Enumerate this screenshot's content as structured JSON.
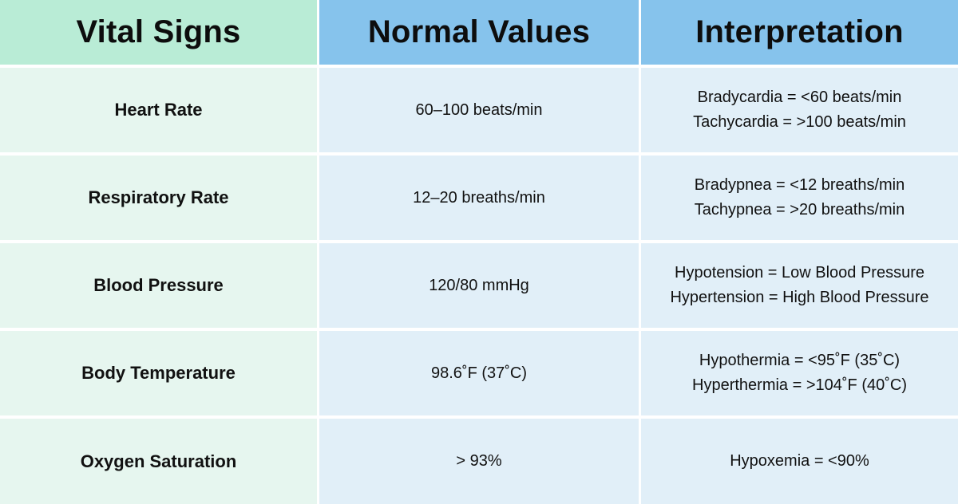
{
  "headers": {
    "col1": "Vital Signs",
    "col2": "Normal Values",
    "col3": "Interpretation"
  },
  "rows": [
    {
      "sign": "Heart Rate",
      "normal": "60–100 beats/min",
      "interp_line1": "Bradycardia = <60 beats/min",
      "interp_line2": "Tachycardia = >100 beats/min"
    },
    {
      "sign": "Respiratory Rate",
      "normal": "12–20 breaths/min",
      "interp_line1": "Bradypnea = <12 breaths/min",
      "interp_line2": "Tachypnea = >20 breaths/min"
    },
    {
      "sign": "Blood Pressure",
      "normal": "120/80 mmHg",
      "interp_line1": "Hypotension = Low Blood Pressure",
      "interp_line2": "Hypertension = High Blood Pressure"
    },
    {
      "sign": "Body Temperature",
      "normal": "98.6˚F (37˚C)",
      "interp_line1": "Hypothermia = <95˚F (35˚C)",
      "interp_line2": "Hyperthermia = >104˚F (40˚C)"
    },
    {
      "sign": "Oxygen Saturation",
      "normal": "> 93%",
      "interp_line1": "Hypoxemia = <90%",
      "interp_line2": ""
    }
  ],
  "colors": {
    "header_first": "#b9ecd6",
    "header_other": "#86c3ec",
    "col1_bg": "#e6f6ef",
    "col_other_bg": "#e1eff8"
  }
}
